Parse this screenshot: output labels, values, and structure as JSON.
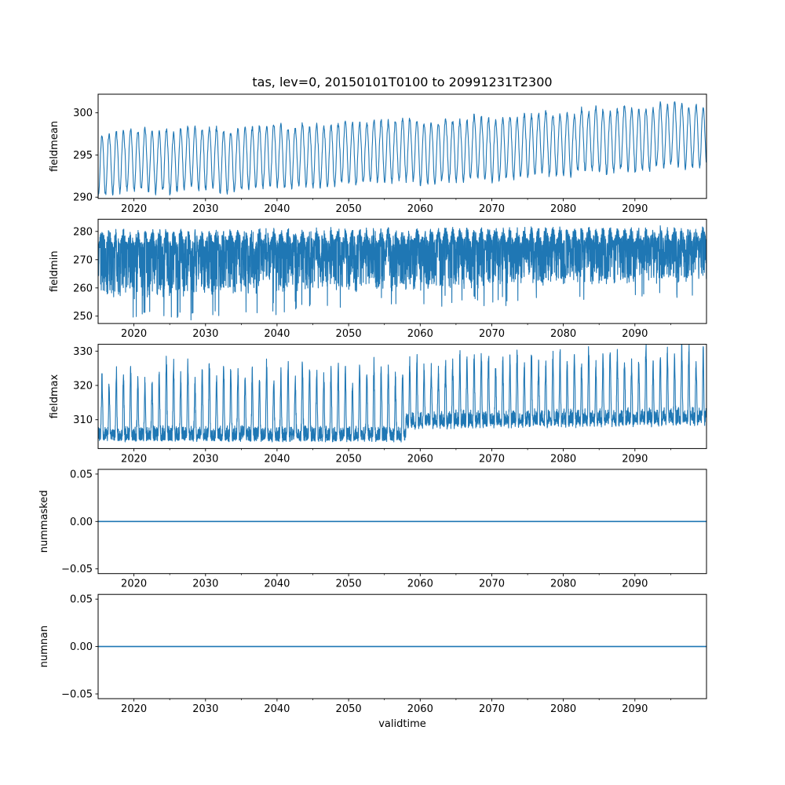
{
  "figure_title": "tas, lev=0, 20150101T0100 to 20991231T2300",
  "line_color": "#1f77b4",
  "background_color": "#ffffff",
  "x_axis": {
    "label": "validtime",
    "lim": [
      2015,
      2100
    ],
    "major_ticks": [
      2020,
      2030,
      2040,
      2050,
      2060,
      2070,
      2080,
      2090
    ],
    "major_tick_labels": [
      "2020",
      "2030",
      "2040",
      "2050",
      "2060",
      "2070",
      "2080",
      "2090"
    ],
    "minor_ticks": [
      2025,
      2035,
      2045,
      2055,
      2065,
      2075,
      2085,
      2095
    ]
  },
  "chart_data": [
    {
      "type": "line",
      "ylabel": "fieldmean",
      "ylim": [
        289.85,
        302.2
      ],
      "yticks": [
        290,
        295,
        300
      ],
      "ytick_labels": [
        "290",
        "295",
        "300"
      ],
      "series": {
        "name": "fieldmean",
        "kind": "seasonal_band",
        "samples_per_year": 24,
        "trend_start": 294.5,
        "trend_end": 297.8,
        "trend_power": 1.5,
        "seasonal_amp_peak": 3.3,
        "seasonal_amp_trough": 3.9,
        "year_jitter": 0.9,
        "noise": 0.3,
        "data_min": 290.3,
        "data_max": 301.7,
        "seed": 7
      }
    },
    {
      "type": "line",
      "ylabel": "fieldmin",
      "ylim": [
        247.4,
        284.3
      ],
      "yticks": [
        250,
        260,
        270,
        280
      ],
      "ytick_labels": [
        "250",
        "260",
        "270",
        "280"
      ],
      "series": {
        "name": "fieldmin",
        "kind": "dense_band",
        "samples_per_year": 48,
        "top_base": 278.2,
        "top_trend": 1.0,
        "top_seasonal": 2.2,
        "bottom_start": 256.8,
        "bottom_end": 263.2,
        "bottom_seasonal": 1.2,
        "spike_prob": 0.018,
        "spike_depth_start": 8.5,
        "spike_depth_end": 6.0,
        "noise": 0.7,
        "data_min": 248.6,
        "data_max": 282.6,
        "seed": 13
      }
    },
    {
      "type": "line",
      "ylabel": "fieldmax",
      "ylim": [
        301.6,
        332.0
      ],
      "yticks": [
        310,
        320,
        330
      ],
      "ytick_labels": [
        "310",
        "320",
        "330"
      ],
      "series": {
        "name": "fieldmax",
        "kind": "spike_train",
        "samples_per_year": 48,
        "base_before": 303.7,
        "base_after": 307.4,
        "step_year": 2058,
        "base_slope_after": 0.026,
        "base_seasonal_before": 0.35,
        "base_seasonal_after": 1.1,
        "body_noise": 4.2,
        "peak_min": 15.0,
        "peak_var": 6.5,
        "peak_trend": 1.5,
        "peak_sharpness": 4,
        "data_min": 303.0,
        "data_max": 330.6,
        "seed": 21
      }
    },
    {
      "type": "line",
      "ylabel": "nummasked",
      "ylim": [
        -0.055,
        0.055
      ],
      "yticks": [
        -0.05,
        0.0,
        0.05
      ],
      "ytick_labels": [
        "−0.05",
        "0.00",
        "0.05"
      ],
      "series": {
        "name": "nummasked",
        "kind": "constant",
        "value": 0.0
      }
    },
    {
      "type": "line",
      "ylabel": "numnan",
      "ylim": [
        -0.055,
        0.055
      ],
      "yticks": [
        -0.05,
        0.0,
        0.05
      ],
      "ytick_labels": [
        "−0.05",
        "0.00",
        "0.05"
      ],
      "series": {
        "name": "numnan",
        "kind": "constant",
        "value": 0.0
      }
    }
  ]
}
